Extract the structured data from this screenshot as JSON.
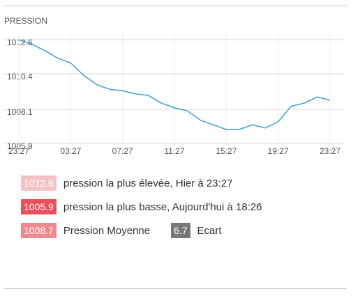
{
  "chart_data": {
    "type": "line",
    "title": "PRESSION",
    "categories": [
      "23:27",
      null,
      null,
      null,
      "03:27",
      null,
      null,
      null,
      "07:27",
      null,
      null,
      null,
      "11:27",
      null,
      null,
      null,
      "15:27",
      null,
      null,
      null,
      "19:27",
      null,
      null,
      null,
      "23:27"
    ],
    "values": [
      1012.6,
      1012.3,
      1011.9,
      1011.4,
      1011.1,
      1010.3,
      1009.7,
      1009.4,
      1009.3,
      1009.1,
      1009.0,
      1008.5,
      1008.2,
      1008.0,
      1007.4,
      1007.1,
      1006.8,
      1006.8,
      1007.1,
      1006.9,
      1007.3,
      1008.3,
      1008.5,
      1008.9,
      1008.7
    ],
    "color": "#3a9fd0",
    "ylim": [
      1005.9,
      1012.6
    ],
    "yticks": [
      1005.9,
      1008.1,
      1010.4,
      1012.6
    ],
    "grid": true
  },
  "stats": [
    {
      "value": "1012.6",
      "label": "pression la plus élevée, Hier à 23:27",
      "color": "#f4c2c5"
    },
    {
      "value": "1005.9",
      "label": "pression la plus basse, Aujourd'hui à 18:26",
      "color": "#e8505b"
    },
    {
      "value": "1008.7",
      "label": "Pression Moyenne",
      "color": "#ec8a90"
    },
    {
      "value": "6.7",
      "label": "Ecart",
      "color": "#777777"
    }
  ]
}
